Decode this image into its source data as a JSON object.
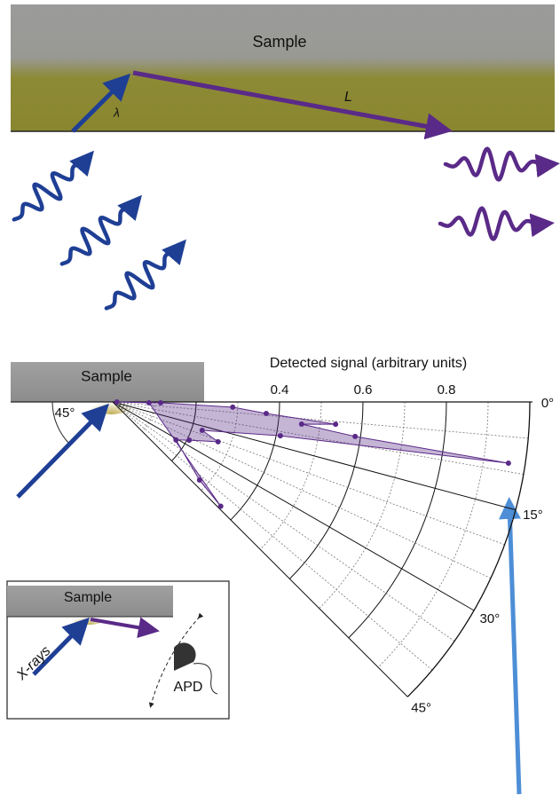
{
  "top_panel": {
    "sample_label": "Sample",
    "wavelength_label": "λ",
    "length_label": "L"
  },
  "chart_data": {
    "type": "polar",
    "sample_label": "Sample",
    "incidence_label": "45°",
    "r_axis_label": "Detected signal (arbitrary units)",
    "rlim": [
      0,
      1.0
    ],
    "rticks": [
      0.4,
      0.6,
      0.8
    ],
    "thetalim": [
      0,
      45
    ],
    "thetaticks": [
      {
        "value": 0,
        "label": "0°"
      },
      {
        "value": 15,
        "label": "15°"
      },
      {
        "value": 30,
        "label": "30°"
      },
      {
        "value": 45,
        "label": "45°"
      }
    ],
    "grid": true,
    "series": [
      {
        "color": "#5a2a88",
        "theta": [
          0,
          1,
          2.5,
          4.3,
          5.7,
          6.7,
          8.1,
          8.8,
          11.4,
          17.6,
          20.7,
          26.6,
          31,
          42,
          44,
          1.4
        ],
        "r": [
          0.01,
          0.115,
          0.288,
          0.369,
          0.537,
          0.456,
          0.587,
          0.96,
          0.41,
          0.225,
          0.27,
          0.205,
          0.177,
          0.28,
          0.36,
          0.087
        ]
      }
    ]
  },
  "inset": {
    "sample_label": "Sample",
    "source_label": "X-rays",
    "detector_label": "APD"
  }
}
